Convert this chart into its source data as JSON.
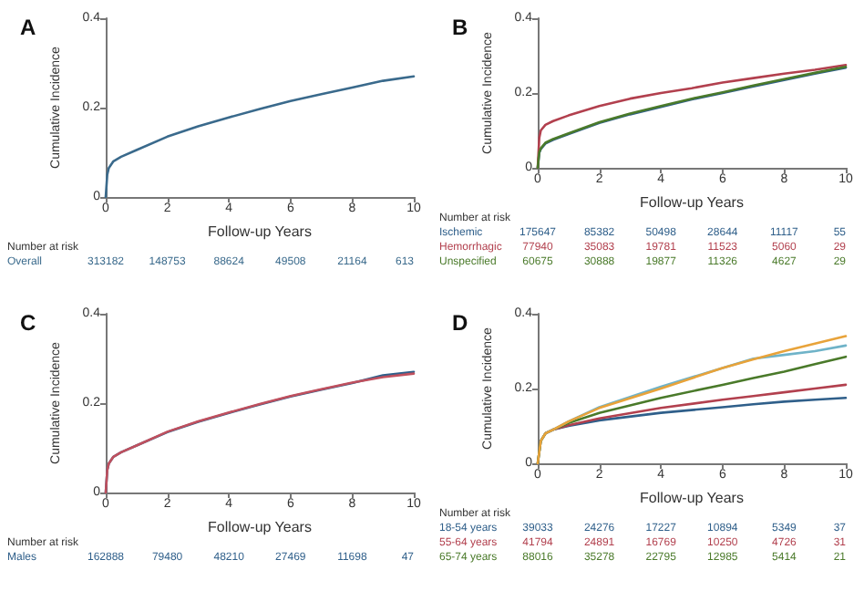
{
  "chart_data": [
    {
      "type": "line",
      "title": "A",
      "xlabel": "Follow-up Years",
      "ylabel": "Cumulative Incidence",
      "xlim": [
        0,
        10
      ],
      "xticks": [
        0,
        2,
        4,
        6,
        8,
        10
      ],
      "ylim": [
        0,
        0.4
      ],
      "yticks": [
        0,
        0.2,
        0.4
      ],
      "grid": false,
      "marker": "none",
      "line_style": "solid",
      "x": [
        0,
        0.05,
        0.1,
        0.25,
        0.5,
        1,
        2,
        3,
        4,
        5,
        6,
        7,
        8,
        9,
        10
      ],
      "series": [
        {
          "color": "#3a6a8c",
          "values": [
            0,
            0.05,
            0.065,
            0.08,
            0.09,
            0.105,
            0.135,
            0.158,
            0.178,
            0.197,
            0.215,
            0.23,
            0.245,
            0.26,
            0.27
          ]
        }
      ],
      "annotations": [
        "Number at risk",
        "Overall 313182 148753 88624 49508 21164 613"
      ]
    },
    {
      "type": "line",
      "title": "B",
      "xlabel": "Follow-up Years",
      "ylabel": "Cumulative Incidence",
      "xlim": [
        0,
        10
      ],
      "xticks": [
        0,
        2,
        4,
        6,
        8,
        10
      ],
      "ylim": [
        0,
        0.4
      ],
      "yticks": [
        0,
        0.2,
        0.4
      ],
      "grid": false,
      "marker": "none",
      "line_style": "solid",
      "x": [
        0,
        0.05,
        0.1,
        0.25,
        0.5,
        1,
        2,
        3,
        4,
        5,
        6,
        7,
        8,
        9,
        10
      ],
      "series": [
        {
          "color": "#2f5f8a",
          "values": [
            0,
            0.04,
            0.05,
            0.065,
            0.075,
            0.09,
            0.12,
            0.143,
            0.163,
            0.183,
            0.2,
            0.218,
            0.235,
            0.252,
            0.268
          ]
        },
        {
          "color": "#b2404e",
          "values": [
            0,
            0.08,
            0.1,
            0.115,
            0.125,
            0.14,
            0.165,
            0.185,
            0.2,
            0.213,
            0.228,
            0.24,
            0.252,
            0.262,
            0.275
          ]
        },
        {
          "color": "#4a7a2a",
          "values": [
            0,
            0.042,
            0.052,
            0.067,
            0.077,
            0.092,
            0.122,
            0.145,
            0.165,
            0.185,
            0.202,
            0.22,
            0.237,
            0.254,
            0.27
          ]
        }
      ],
      "annotations": [
        "Number at risk",
        "Ischemic 175647 85382 50498 28644 11117 55",
        "Hemorrhagic 77940 35083 19781 11523 5060 29",
        "Unspecified 60675 30888 19877 11326 4627 29"
      ]
    },
    {
      "type": "line",
      "title": "C",
      "xlabel": "Follow-up Years",
      "ylabel": "Cumulative Incidence",
      "xlim": [
        0,
        10
      ],
      "xticks": [
        0,
        2,
        4,
        6,
        8,
        10
      ],
      "ylim": [
        0,
        0.4
      ],
      "yticks": [
        0,
        0.2,
        0.4
      ],
      "grid": false,
      "marker": "none",
      "line_style": "solid",
      "x": [
        0,
        0.05,
        0.1,
        0.25,
        0.5,
        1,
        2,
        3,
        4,
        5,
        6,
        7,
        8,
        9,
        10
      ],
      "series": [
        {
          "color": "#2f5f8a",
          "values": [
            0,
            0.05,
            0.065,
            0.08,
            0.09,
            0.105,
            0.135,
            0.158,
            0.178,
            0.197,
            0.215,
            0.23,
            0.245,
            0.262,
            0.27
          ]
        },
        {
          "color": "#c0505e",
          "values": [
            0,
            0.05,
            0.065,
            0.08,
            0.09,
            0.105,
            0.136,
            0.159,
            0.179,
            0.198,
            0.216,
            0.231,
            0.246,
            0.258,
            0.266
          ]
        }
      ],
      "annotations": [
        "Number at risk",
        "Males 162888 79480 48210 27469 11698 47"
      ]
    },
    {
      "type": "line",
      "title": "D",
      "xlabel": "Follow-up Years",
      "ylabel": "Cumulative Incidence",
      "xlim": [
        0,
        10
      ],
      "xticks": [
        0,
        2,
        4,
        6,
        8,
        10
      ],
      "ylim": [
        0,
        0.4
      ],
      "yticks": [
        0,
        0.2,
        0.4
      ],
      "grid": false,
      "marker": "none",
      "line_style": "solid",
      "x": [
        0,
        0.1,
        0.25,
        0.5,
        1,
        2,
        4,
        6,
        7,
        8,
        9,
        10
      ],
      "series": [
        {
          "color": "#2f5f8a",
          "values": [
            0,
            0.06,
            0.08,
            0.09,
            0.1,
            0.115,
            0.135,
            0.15,
            0.158,
            0.165,
            0.17,
            0.175
          ]
        },
        {
          "color": "#b2404e",
          "values": [
            null,
            null,
            0.08,
            0.09,
            0.102,
            0.12,
            0.148,
            0.17,
            0.18,
            0.19,
            0.2,
            0.21
          ]
        },
        {
          "color": "#4a7a2a",
          "values": [
            0,
            0.06,
            0.08,
            0.09,
            0.108,
            0.135,
            0.175,
            0.21,
            0.228,
            0.245,
            0.265,
            0.285
          ]
        },
        {
          "color": "#6fb3c8",
          "values": [
            null,
            null,
            0.08,
            0.09,
            0.112,
            0.15,
            0.205,
            0.255,
            0.28,
            0.29,
            0.3,
            0.315
          ]
        },
        {
          "color": "#e8a33a",
          "values": [
            0,
            0.06,
            0.08,
            0.09,
            0.112,
            0.148,
            0.2,
            0.255,
            0.278,
            0.3,
            0.32,
            0.34
          ]
        }
      ],
      "annotations": [
        "Number at risk",
        "18-54 years 39033 24276 17227 10894 5349 37",
        "55-64 years 41794 24891 16769 10250 4726 31",
        "65-74 years 88016 35278 22795 12985 5414 21"
      ]
    }
  ]
}
